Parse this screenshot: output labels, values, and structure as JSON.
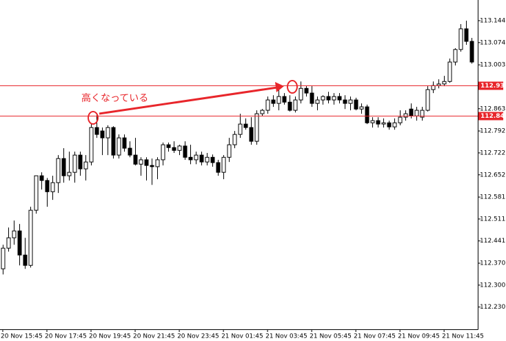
{
  "chart_data": {
    "type": "candlestick",
    "annotation": "高くなっている",
    "open": [
      112.352,
      112.418,
      112.451,
      112.473,
      112.396,
      112.363,
      112.539,
      112.649,
      112.634,
      112.598,
      112.627,
      112.704,
      112.649,
      112.66,
      112.715,
      112.671,
      112.693,
      112.803,
      112.792,
      112.77,
      112.803,
      112.715,
      112.77,
      112.737,
      112.715,
      112.686,
      112.7,
      112.682,
      112.678,
      112.7,
      112.748,
      112.739,
      112.73,
      112.744,
      112.708,
      112.7,
      112.715,
      112.693,
      112.708,
      112.691,
      112.66,
      112.708,
      112.748,
      112.781,
      112.814,
      112.803,
      112.759,
      112.847,
      112.858,
      112.891,
      112.88,
      112.902,
      112.884,
      112.858,
      112.891,
      112.928,
      112.913,
      112.88,
      112.891,
      112.902,
      112.891,
      112.902,
      112.891,
      112.88,
      112.891,
      112.862,
      112.869,
      112.818,
      112.825,
      112.814,
      112.818,
      112.805,
      112.818,
      112.836,
      112.862,
      112.84,
      112.836,
      112.858,
      112.924,
      112.937,
      112.942,
      112.95,
      113.012,
      113.052,
      113.118,
      113.078
    ],
    "high": [
      112.429,
      112.484,
      112.506,
      112.495,
      112.451,
      112.55,
      112.649,
      112.66,
      112.642,
      112.649,
      112.715,
      112.737,
      112.726,
      112.726,
      112.726,
      112.715,
      112.814,
      112.847,
      112.803,
      112.81,
      112.807,
      112.781,
      112.781,
      112.759,
      112.77,
      112.708,
      112.708,
      112.704,
      112.708,
      112.755,
      112.755,
      112.759,
      112.748,
      112.759,
      112.748,
      112.726,
      112.726,
      112.722,
      112.717,
      112.7,
      112.715,
      112.77,
      112.792,
      112.847,
      112.832,
      112.836,
      112.858,
      112.862,
      112.902,
      112.906,
      112.924,
      112.913,
      112.906,
      112.902,
      112.95,
      112.935,
      112.935,
      112.902,
      112.906,
      112.917,
      112.913,
      112.913,
      112.906,
      112.902,
      112.898,
      112.88,
      112.876,
      112.836,
      112.836,
      112.832,
      112.825,
      112.832,
      112.858,
      112.858,
      112.88,
      112.869,
      112.869,
      112.935,
      112.95,
      112.957,
      112.968,
      113.023,
      113.056,
      113.133,
      113.144,
      113.089
    ],
    "low": [
      112.334,
      112.407,
      112.429,
      112.363,
      112.352,
      112.356,
      112.528,
      112.605,
      112.55,
      112.572,
      112.594,
      112.627,
      112.634,
      112.627,
      112.649,
      112.634,
      112.682,
      112.77,
      112.715,
      112.715,
      112.704,
      112.704,
      112.726,
      112.708,
      112.682,
      112.649,
      112.634,
      112.62,
      112.638,
      112.682,
      112.726,
      112.722,
      112.715,
      112.7,
      112.686,
      112.686,
      112.682,
      112.682,
      112.678,
      112.649,
      112.638,
      112.693,
      112.737,
      112.77,
      112.796,
      112.748,
      112.748,
      112.84,
      112.847,
      112.869,
      112.858,
      112.876,
      112.854,
      112.851,
      112.88,
      112.902,
      112.869,
      112.858,
      112.876,
      112.88,
      112.876,
      112.88,
      112.862,
      112.858,
      112.858,
      112.847,
      112.814,
      112.803,
      112.803,
      112.803,
      112.796,
      112.796,
      112.81,
      112.825,
      112.832,
      112.825,
      112.825,
      112.854,
      112.913,
      112.928,
      112.935,
      112.946,
      113.001,
      113.045,
      113.067,
      113.007
    ],
    "close": [
      112.418,
      112.451,
      112.473,
      112.396,
      112.363,
      112.539,
      112.649,
      112.634,
      112.598,
      112.627,
      112.704,
      112.649,
      112.66,
      112.715,
      112.671,
      112.693,
      112.803,
      112.781,
      112.77,
      112.803,
      112.715,
      112.77,
      112.737,
      112.715,
      112.686,
      112.7,
      112.682,
      112.678,
      112.7,
      112.748,
      112.739,
      112.73,
      112.744,
      112.708,
      112.7,
      112.715,
      112.693,
      112.708,
      112.691,
      112.66,
      112.708,
      112.748,
      112.781,
      112.814,
      112.803,
      112.759,
      112.847,
      112.858,
      112.891,
      112.88,
      112.902,
      112.884,
      112.858,
      112.891,
      112.928,
      112.913,
      112.88,
      112.891,
      112.902,
      112.891,
      112.902,
      112.891,
      112.88,
      112.891,
      112.862,
      112.869,
      112.818,
      112.825,
      112.814,
      112.818,
      112.805,
      112.818,
      112.836,
      112.847,
      112.84,
      112.858,
      112.858,
      112.924,
      112.937,
      112.942,
      112.95,
      113.012,
      113.052,
      113.118,
      113.078,
      113.012
    ],
    "xlim": [
      -0.5,
      86.1
    ],
    "xticks": [
      {
        "value": 0,
        "label": "20 Nov 15:45"
      },
      {
        "value": 8,
        "label": "20 Nov 17:45"
      },
      {
        "value": 16,
        "label": "20 Nov 19:45"
      },
      {
        "value": 24,
        "label": "20 Nov 21:45"
      },
      {
        "value": 32,
        "label": "20 Nov 23:45"
      },
      {
        "value": 40,
        "label": "21 Nov 01:45"
      },
      {
        "value": 48,
        "label": "21 Nov 03:45"
      },
      {
        "value": 56,
        "label": "21 Nov 05:45"
      },
      {
        "value": 64,
        "label": "21 Nov 07:45"
      },
      {
        "value": 72,
        "label": "21 Nov 09:45"
      },
      {
        "value": 80,
        "label": "21 Nov 11:45"
      }
    ],
    "ylim": [
      112.159,
      113.21
    ],
    "yticks": [
      113.144,
      113.074,
      113.003,
      112.863,
      112.792,
      112.722,
      112.652,
      112.581,
      112.511,
      112.441,
      {
        "value": 112.37,
        "label": "112.370"
      },
      {
        "value": 112.3,
        "label": "112.300"
      },
      {
        "value": 112.23,
        "label": "112.230"
      }
    ],
    "levels": [
      112.937,
      112.841
    ],
    "level_color": "#e8262b",
    "bull_color": "#ffffff",
    "bear_color": "#000000"
  }
}
